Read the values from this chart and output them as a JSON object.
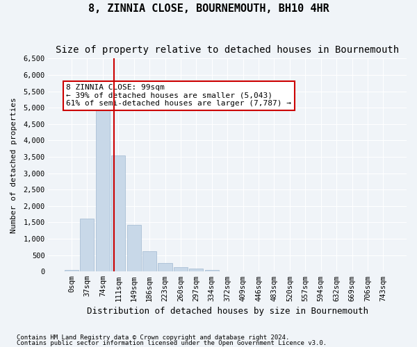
{
  "title": "8, ZINNIA CLOSE, BOURNEMOUTH, BH10 4HR",
  "subtitle": "Size of property relative to detached houses in Bournemouth",
  "xlabel": "Distribution of detached houses by size in Bournemouth",
  "ylabel": "Number of detached properties",
  "footnote1": "Contains HM Land Registry data © Crown copyright and database right 2024.",
  "footnote2": "Contains public sector information licensed under the Open Government Licence v3.0.",
  "bin_labels": [
    "0sqm",
    "37sqm",
    "74sqm",
    "111sqm",
    "149sqm",
    "186sqm",
    "223sqm",
    "260sqm",
    "297sqm",
    "334sqm",
    "372sqm",
    "409sqm",
    "446sqm",
    "483sqm",
    "520sqm",
    "557sqm",
    "594sqm",
    "632sqm",
    "669sqm",
    "706sqm",
    "743sqm"
  ],
  "bar_values": [
    50,
    1620,
    5070,
    3550,
    1420,
    620,
    270,
    130,
    90,
    50,
    0,
    0,
    0,
    0,
    0,
    0,
    0,
    0,
    0,
    0,
    0
  ],
  "bar_color": "#c8d8e8",
  "bar_edgecolor": "#a0b8d0",
  "ylim": [
    0,
    6500
  ],
  "yticks": [
    0,
    500,
    1000,
    1500,
    2000,
    2500,
    3000,
    3500,
    4000,
    4500,
    5000,
    5500,
    6000,
    6500
  ],
  "vline_x": 2.73,
  "vline_color": "#cc0000",
  "annotation_text": "8 ZINNIA CLOSE: 99sqm\n← 39% of detached houses are smaller (5,043)\n61% of semi-detached houses are larger (7,787) →",
  "annotation_box_color": "#ffffff",
  "annotation_box_edgecolor": "#cc0000",
  "bg_color": "#f0f4f8",
  "plot_bg_color": "#f0f4f8",
  "grid_color": "#ffffff",
  "title_fontsize": 11,
  "subtitle_fontsize": 10,
  "xlabel_fontsize": 9,
  "ylabel_fontsize": 8,
  "annotation_fontsize": 8,
  "tick_fontsize": 7.5
}
